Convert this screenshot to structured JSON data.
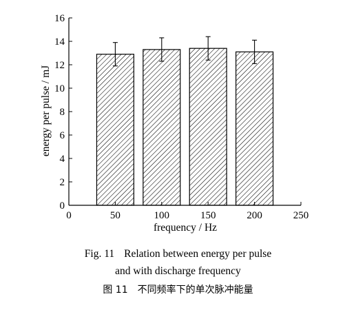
{
  "chart_data": {
    "type": "bar",
    "categories": [
      "50",
      "100",
      "150",
      "200"
    ],
    "x": [
      50,
      100,
      150,
      200
    ],
    "values": [
      12.9,
      13.3,
      13.4,
      13.1
    ],
    "error": [
      1.0,
      1.0,
      1.0,
      1.0
    ],
    "xlabel": "frequency / Hz",
    "ylabel": "energy per pulse / mJ",
    "xlim": [
      0,
      250
    ],
    "ylim": [
      0,
      16
    ],
    "xticks": [
      0,
      50,
      100,
      150,
      200,
      250
    ],
    "yticks": [
      0,
      2,
      4,
      6,
      8,
      10,
      12,
      14,
      16
    ],
    "grid": false,
    "bar_fill": "diagonal-hatch"
  },
  "caption": {
    "line1_num": "Fig. 11",
    "line1_text": "Relation between energy per pulse",
    "line2_text": "and with discharge frequency",
    "line3_num": "图 11",
    "line3_text": "不同频率下的单次脉冲能量"
  },
  "colors": {
    "ink": "#000000",
    "background": "#ffffff"
  }
}
